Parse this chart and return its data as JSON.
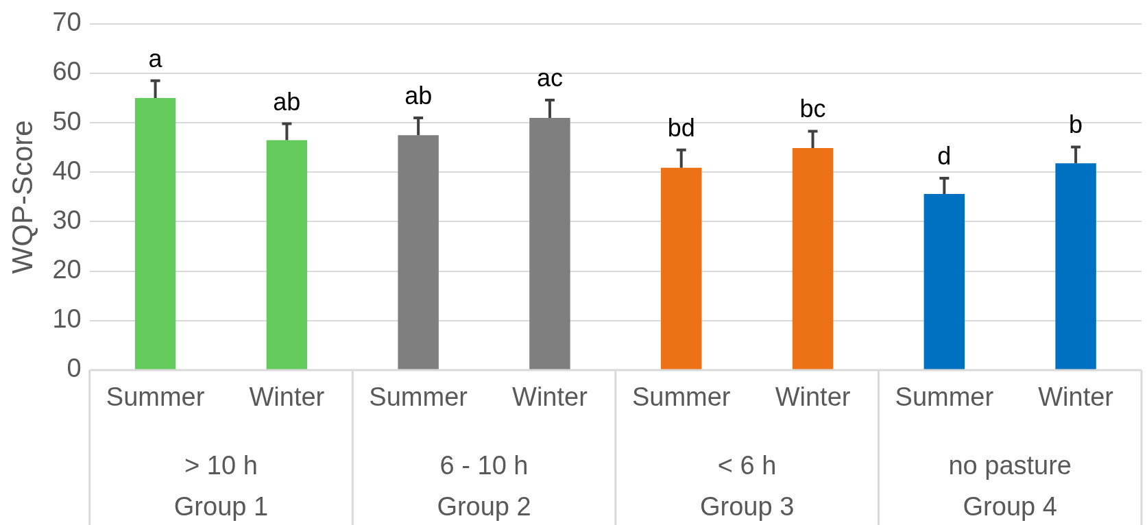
{
  "chart_data": {
    "type": "bar",
    "ylabel": "WQP-Score",
    "categories": [
      "Summer",
      "Winter",
      "Summer",
      "Winter",
      "Summer",
      "Winter",
      "Summer",
      "Winter"
    ],
    "values": [
      55.0,
      46.5,
      47.5,
      51.0,
      40.9,
      44.9,
      35.6,
      41.8
    ],
    "colors": [
      "#62cb5c",
      "#62cb5c",
      "#7f7f7f",
      "#7f7f7f",
      "#ed7117",
      "#ed7117",
      "#0070c0",
      "#0070c0"
    ],
    "errors": [
      [
        55.0,
        58.5
      ],
      [
        46.5,
        49.8
      ],
      [
        47.5,
        51.0
      ],
      [
        51.0,
        54.6
      ],
      [
        40.9,
        44.5
      ],
      [
        44.9,
        48.3
      ],
      [
        35.6,
        38.8
      ],
      [
        41.8,
        45.1
      ]
    ],
    "value_labels": [
      "a",
      "ab",
      "ab",
      "ac",
      "bd",
      "bc",
      "d",
      "b"
    ],
    "annotations": [
      "> 10 h\nGroup 1",
      "6 - 10 h\nGroup 2",
      "< 6 h\nGroup 3",
      "no pasture\nGroup 4"
    ],
    "ylim": [
      0,
      70
    ],
    "yticks": [
      0,
      10,
      20,
      30,
      40,
      50,
      60,
      70
    ],
    "grid": "y",
    "legend": false
  }
}
